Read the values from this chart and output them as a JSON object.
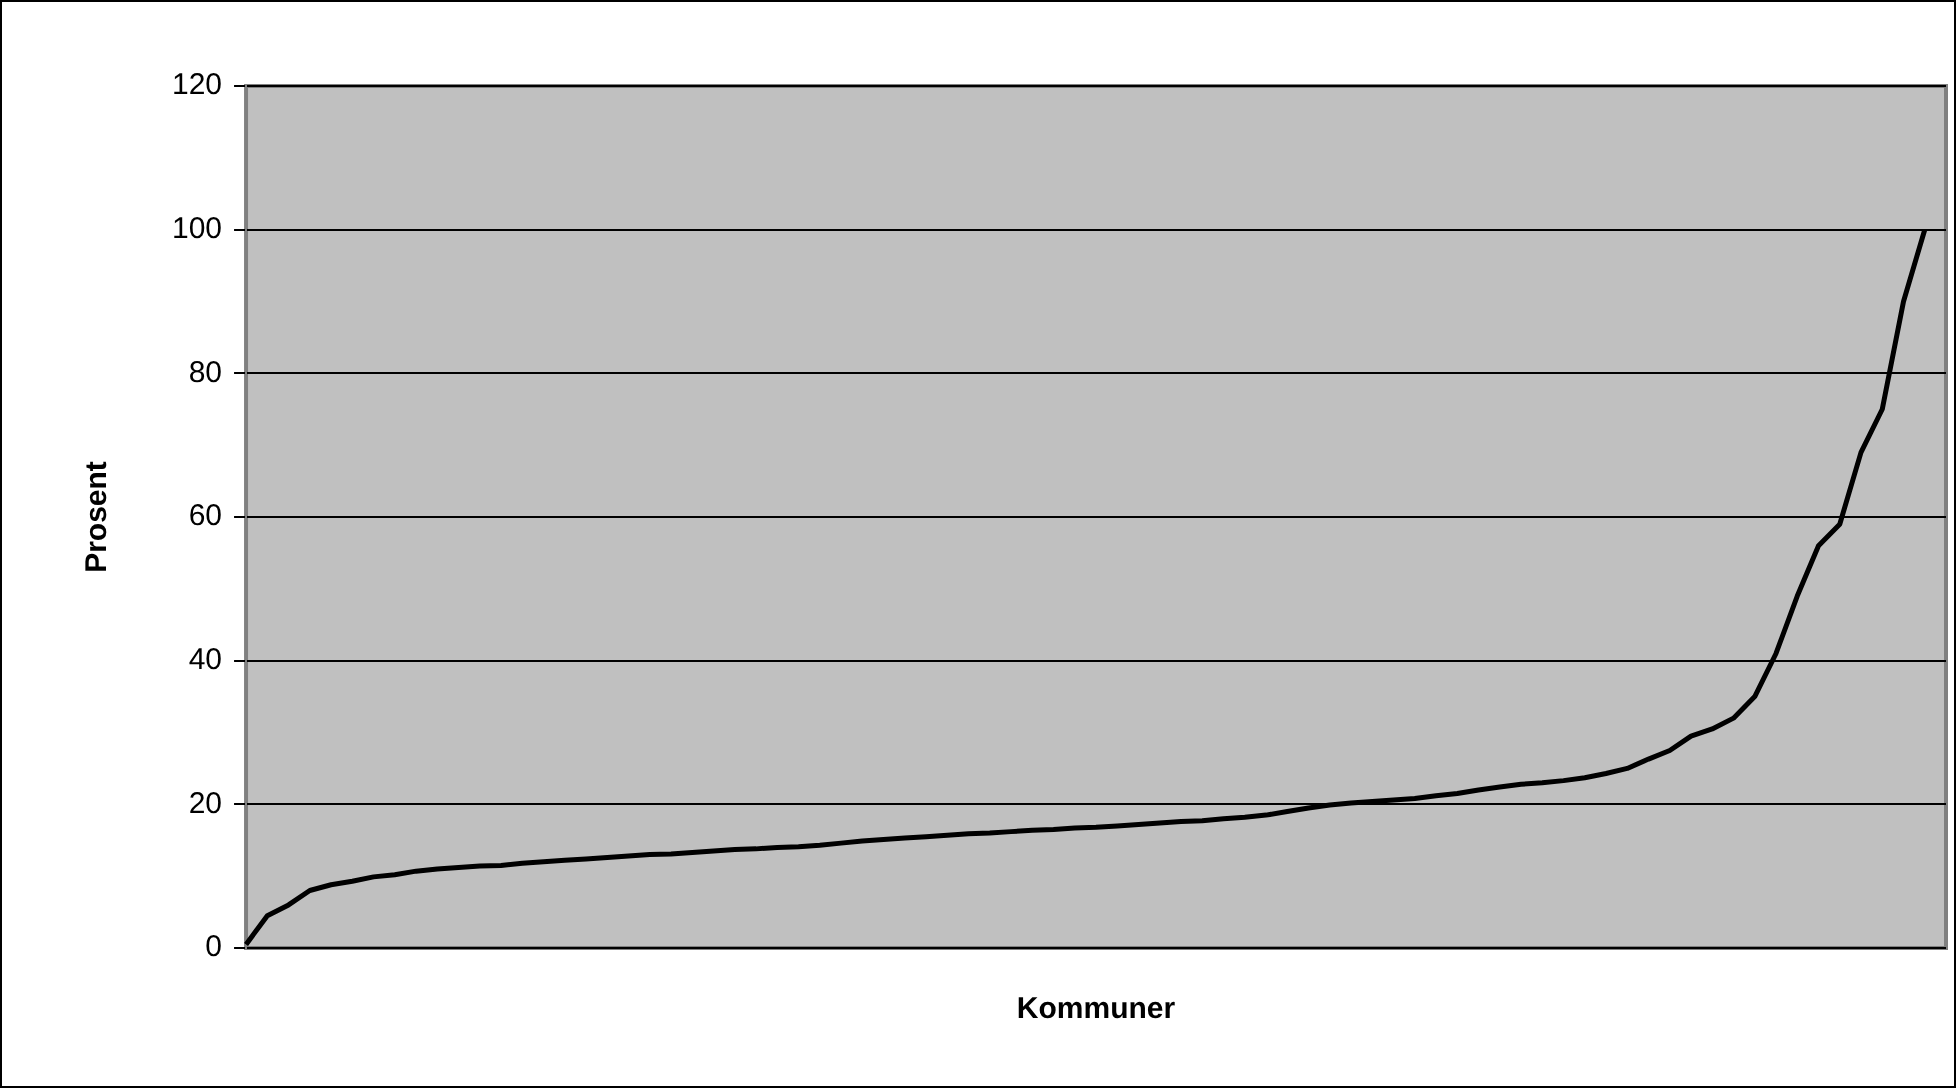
{
  "chart_data": {
    "type": "line",
    "xlabel": "Kommuner",
    "ylabel": "Prosent",
    "categories": [
      null,
      null,
      null,
      null,
      null,
      null,
      null,
      null,
      null,
      null,
      null,
      null,
      null,
      null,
      null,
      null,
      null,
      null,
      null,
      null,
      null,
      null,
      null,
      null,
      null,
      null,
      null,
      null,
      null,
      null,
      null,
      null,
      null,
      null,
      null,
      null,
      null,
      null,
      null,
      null,
      null,
      null,
      null,
      null,
      null,
      null,
      null,
      null,
      null,
      null,
      null,
      null,
      null,
      null,
      null,
      null,
      null,
      null,
      null,
      null,
      null,
      null,
      null,
      null,
      null,
      null,
      null,
      null,
      null,
      null,
      null,
      null,
      null,
      null,
      null,
      null,
      null,
      null,
      null,
      null,
      null
    ],
    "series": [
      {
        "color": "#000000",
        "values": [
          0.5,
          4.5,
          6,
          8,
          8.8,
          9.3,
          9.9,
          10.2,
          10.7,
          11,
          11.2,
          11.4,
          11.5,
          11.8,
          12,
          12.2,
          12.4,
          12.6,
          12.8,
          13,
          13.1,
          13.3,
          13.5,
          13.7,
          13.8,
          14,
          14.1,
          14.3,
          14.6,
          14.9,
          15.1,
          15.3,
          15.5,
          15.7,
          15.9,
          16,
          16.2,
          16.4,
          16.5,
          16.7,
          16.8,
          17,
          17.2,
          17.4,
          17.6,
          17.7,
          18,
          18.2,
          18.5,
          19,
          19.5,
          19.9,
          20.2,
          20.4,
          20.6,
          20.8,
          21.2,
          21.5,
          22,
          22.4,
          22.8,
          23,
          23.3,
          23.7,
          24.3,
          25,
          26.3,
          27.5,
          29.5,
          30.5,
          32,
          35,
          41,
          49,
          56,
          59,
          69,
          75,
          90,
          100,
          null
        ]
      }
    ],
    "ylim": [
      0,
      120
    ],
    "yticks": [
      0,
      20,
      40,
      60,
      80,
      100,
      120
    ],
    "grid": "y",
    "tick_labels": "y",
    "legend": false,
    "marker": "none",
    "line_style": "solid"
  }
}
